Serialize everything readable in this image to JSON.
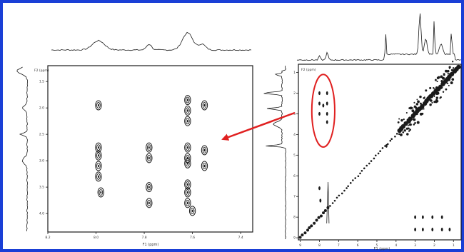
{
  "figure": {
    "frame_color": "#1a3fd6",
    "arrow_color": "#e02020",
    "highlight_color": "#e02020",
    "ink_color": "#1a1a1a"
  },
  "chart_data": [
    {
      "type": "contour",
      "panel": "zoomed-left",
      "f1_axis_label": "F1 (ppm)",
      "f2_axis_label": "F2 (ppm)",
      "f1_ticks": [
        "8.2",
        "8.0",
        "7.8",
        "7.6",
        "7.4"
      ],
      "f2_ticks": [
        "1.5",
        "2.0",
        "2.5",
        "3.0",
        "3.5",
        "4.0"
      ],
      "f1_range": [
        8.2,
        7.35
      ],
      "f2_range": [
        1.2,
        4.35
      ],
      "peaks": [
        {
          "f1": 7.99,
          "f2": 1.95
        },
        {
          "f1": 7.99,
          "f2": 2.75
        },
        {
          "f1": 7.99,
          "f2": 2.9
        },
        {
          "f1": 7.99,
          "f2": 3.1
        },
        {
          "f1": 7.99,
          "f2": 3.3
        },
        {
          "f1": 7.98,
          "f2": 3.6
        },
        {
          "f1": 7.78,
          "f2": 2.75
        },
        {
          "f1": 7.78,
          "f2": 2.95
        },
        {
          "f1": 7.78,
          "f2": 3.5
        },
        {
          "f1": 7.78,
          "f2": 3.8
        },
        {
          "f1": 7.62,
          "f2": 1.85
        },
        {
          "f1": 7.62,
          "f2": 2.05
        },
        {
          "f1": 7.62,
          "f2": 2.25
        },
        {
          "f1": 7.62,
          "f2": 2.75
        },
        {
          "f1": 7.62,
          "f2": 2.95
        },
        {
          "f1": 7.62,
          "f2": 3.05
        },
        {
          "f1": 7.62,
          "f2": 3.45
        },
        {
          "f1": 7.62,
          "f2": 3.6
        },
        {
          "f1": 7.62,
          "f2": 3.8
        },
        {
          "f1": 7.6,
          "f2": 3.95
        },
        {
          "f1": 7.55,
          "f2": 1.95
        },
        {
          "f1": 7.55,
          "f2": 2.8
        },
        {
          "f1": 7.55,
          "f2": 3.1
        }
      ]
    },
    {
      "type": "contour",
      "panel": "full-right",
      "f1_axis_label": "F1 (ppm)",
      "f2_axis_label": "F2 (ppm)",
      "f1_ticks": [
        "9",
        "8",
        "7",
        "6",
        "5",
        "4",
        "3",
        "2",
        "1"
      ],
      "f2_ticks": [
        "1",
        "2",
        "3",
        "4",
        "5",
        "6",
        "7",
        "8",
        "9"
      ],
      "f1_range": [
        9.1,
        0.6
      ],
      "f2_range": [
        0.6,
        9.1
      ],
      "diagonal": true,
      "highlight_region": {
        "f1": [
          8.25,
          7.35
        ],
        "f2": [
          1.3,
          4.4
        ]
      },
      "peaks": [
        {
          "f1": 8.0,
          "f2": 2.0
        },
        {
          "f1": 8.0,
          "f2": 2.5
        },
        {
          "f1": 8.0,
          "f2": 3.0
        },
        {
          "f1": 7.8,
          "f2": 2.6
        },
        {
          "f1": 7.6,
          "f2": 2.0
        },
        {
          "f1": 7.6,
          "f2": 2.5
        },
        {
          "f1": 7.6,
          "f2": 3.0
        },
        {
          "f1": 7.6,
          "f2": 3.4
        },
        {
          "f1": 4.5,
          "f2": 4.55
        },
        {
          "f1": 8.0,
          "f2": 6.6
        },
        {
          "f1": 7.95,
          "f2": 7.2
        },
        {
          "f1": 3.0,
          "f2": 8.0
        },
        {
          "f1": 2.6,
          "f2": 8.0
        },
        {
          "f1": 2.1,
          "f2": 8.0
        },
        {
          "f1": 1.6,
          "f2": 8.0
        },
        {
          "f1": 3.0,
          "f2": 8.6
        },
        {
          "f1": 2.6,
          "f2": 8.6
        },
        {
          "f1": 2.1,
          "f2": 8.6
        },
        {
          "f1": 1.6,
          "f2": 8.6
        },
        {
          "f1": 1.2,
          "f2": 8.6
        }
      ]
    }
  ]
}
